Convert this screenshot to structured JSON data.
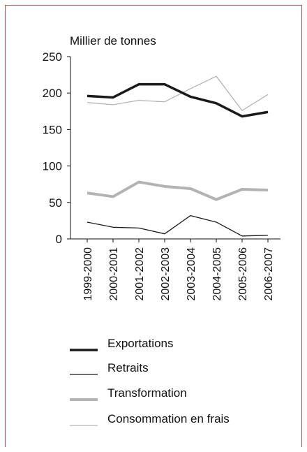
{
  "chart_data": {
    "type": "line",
    "ylabel": "Millier de tonnes",
    "ylim": [
      0,
      250
    ],
    "yticks": [
      0,
      50,
      100,
      150,
      200,
      250
    ],
    "categories": [
      "1999-2000",
      "2000-2001",
      "2001-2002",
      "2002-2003",
      "2003-2004",
      "2004-2005",
      "2005-2006",
      "2006-2007"
    ],
    "series": [
      {
        "name": "Exportations",
        "values": [
          196,
          194,
          212,
          212,
          195,
          186,
          168,
          174
        ],
        "color": "#1a1a1a",
        "style": "thick"
      },
      {
        "name": "Retraits",
        "values": [
          23,
          16,
          15,
          7,
          32,
          23,
          4,
          5
        ],
        "color": "#1a1a1a",
        "style": "thin"
      },
      {
        "name": "Transformation",
        "values": [
          63,
          58,
          78,
          72,
          69,
          54,
          68,
          67
        ],
        "color": "#b3b3b3",
        "style": "thick"
      },
      {
        "name": "Consommation en frais",
        "values": [
          187,
          184,
          190,
          188,
          206,
          223,
          176,
          198
        ],
        "color": "#b3b3b3",
        "style": "thin"
      }
    ],
    "grid": false,
    "legend_position": "bottom"
  }
}
